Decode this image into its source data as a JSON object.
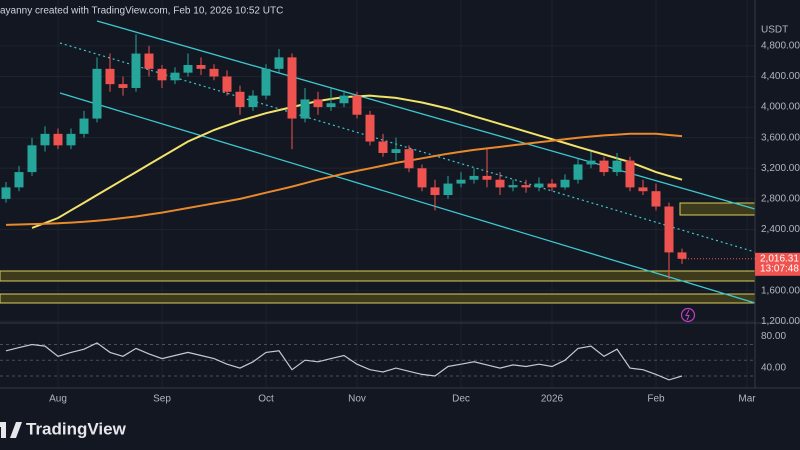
{
  "header": "ayanny created with TradingView.com, Feb 10, 2026 10:52 UTC",
  "brand": "TradingView",
  "chart_data": {
    "type": "candlestick",
    "currency": "USDT",
    "last_price_label": "2,016.31",
    "countdown": "13:07:48",
    "up_color": "#26a69a",
    "down_color": "#ef5350",
    "categories": [
      null,
      null,
      null,
      null,
      "Aug",
      null,
      null,
      null,
      null,
      null,
      null,
      null,
      "Sep",
      null,
      null,
      null,
      null,
      null,
      null,
      null,
      "Oct",
      null,
      null,
      null,
      null,
      null,
      null,
      "Nov",
      null,
      null,
      null,
      null,
      null,
      null,
      null,
      "Dec",
      null,
      null,
      null,
      null,
      null,
      null,
      "2026",
      null,
      null,
      null,
      null,
      null,
      null,
      null,
      "Feb",
      null,
      null,
      null,
      null,
      null,
      null,
      "Mar"
    ],
    "open": [
      2800,
      2950,
      3150,
      3500,
      3650,
      3500,
      3650,
      3850,
      4500,
      4300,
      4250,
      4700,
      4500,
      4350,
      4450,
      4550,
      4500,
      4400,
      4200,
      4000,
      4150,
      4500,
      4650,
      3850,
      4100,
      4000,
      4050,
      4150,
      3900,
      3550,
      3400,
      3450,
      3200,
      2950,
      2850,
      3000,
      3050,
      3100,
      3050,
      2950,
      2980,
      2950,
      3000,
      2950,
      3050,
      3250,
      3300,
      3150,
      3300,
      2950,
      2900,
      2700,
      2100,
      null,
      null,
      null,
      null,
      null
    ],
    "high": [
      3020,
      3230,
      3600,
      3750,
      3720,
      3720,
      3950,
      4650,
      4700,
      4400,
      4950,
      4800,
      4550,
      4520,
      4700,
      4650,
      4560,
      4480,
      4280,
      4220,
      4560,
      4760,
      4700,
      4250,
      4200,
      4250,
      4220,
      4200,
      3950,
      3650,
      3600,
      3500,
      3250,
      3050,
      3100,
      3150,
      3200,
      3450,
      3150,
      3050,
      3050,
      3080,
      3060,
      3120,
      3320,
      3420,
      3350,
      3400,
      3350,
      3050,
      3000,
      2750,
      2150,
      null,
      null,
      null,
      null,
      null
    ],
    "low": [
      2750,
      2900,
      3100,
      3420,
      3450,
      3450,
      3600,
      3800,
      4200,
      4150,
      4200,
      4400,
      4250,
      4300,
      4400,
      4420,
      4350,
      4150,
      3900,
      3950,
      4100,
      4450,
      3450,
      3800,
      3900,
      3950,
      4000,
      3850,
      3500,
      3350,
      3300,
      3150,
      2900,
      2650,
      2800,
      2950,
      3000,
      2950,
      2850,
      2900,
      2880,
      2900,
      2900,
      2920,
      3000,
      3200,
      3100,
      3100,
      2900,
      2850,
      2650,
      1750,
      1950,
      null,
      null,
      null,
      null,
      null
    ],
    "close": [
      2950,
      3150,
      3500,
      3650,
      3500,
      3650,
      3850,
      4500,
      4300,
      4250,
      4700,
      4500,
      4350,
      4450,
      4550,
      4500,
      4400,
      4200,
      4000,
      4150,
      4500,
      4650,
      3850,
      4100,
      4000,
      4050,
      4150,
      3900,
      3550,
      3400,
      3450,
      3200,
      2950,
      2850,
      3000,
      3050,
      3100,
      3050,
      2950,
      2980,
      2950,
      3000,
      2950,
      3050,
      3250,
      3300,
      3150,
      3300,
      2950,
      2900,
      2700,
      2100,
      2016.31,
      null,
      null,
      null,
      null,
      null
    ],
    "ma_lines": [
      {
        "color": "#f2e36b",
        "values": [
          null,
          null,
          2420,
          2485,
          2550,
          2650,
          2750,
          2850,
          2950,
          3050,
          3150,
          3250,
          3350,
          3450,
          3550,
          3625,
          3700,
          3760,
          3820,
          3870,
          3920,
          3960,
          4000,
          4040,
          4080,
          4105,
          4130,
          4140,
          4150,
          4135,
          4120,
          4090,
          4060,
          4020,
          3980,
          3930,
          3880,
          3830,
          3780,
          3730,
          3680,
          3630,
          3580,
          3530,
          3480,
          3430,
          3380,
          3330,
          3280,
          3215,
          3150,
          3100,
          3050,
          null,
          null,
          null,
          null,
          null
        ]
      },
      {
        "color": "#e8892c",
        "values": [
          2460,
          2465,
          2470,
          2475,
          2480,
          2490,
          2500,
          2515,
          2530,
          2550,
          2570,
          2595,
          2620,
          2650,
          2680,
          2710,
          2740,
          2770,
          2800,
          2840,
          2880,
          2920,
          2960,
          3005,
          3050,
          3090,
          3130,
          3165,
          3200,
          3235,
          3270,
          3300,
          3330,
          3360,
          3390,
          3415,
          3440,
          3460,
          3480,
          3500,
          3520,
          3540,
          3560,
          3580,
          3600,
          3615,
          3630,
          3640,
          3650,
          3650,
          3650,
          3635,
          3620,
          null,
          null,
          null,
          null,
          null
        ]
      }
    ],
    "ylim": [
      1190,
      5400
    ],
    "yticks": [
      {
        "value": 4800,
        "label": "4,800.00"
      },
      {
        "value": 4400,
        "label": "4,400.00"
      },
      {
        "value": 4000,
        "label": "4,000.00"
      },
      {
        "value": 3600,
        "label": "3,600.00"
      },
      {
        "value": 3200,
        "label": "3,200.00"
      },
      {
        "value": 2800,
        "label": "2,800.00"
      },
      {
        "value": 2400,
        "label": "2,400.00"
      },
      {
        "value": 1600,
        "label": "1,600.00"
      },
      {
        "value": 1200,
        "label": "1,200.00"
      }
    ],
    "grid": true,
    "rsi": {
      "color": "#c5c8d3",
      "values": [
        62,
        66,
        70,
        68,
        55,
        60,
        64,
        72,
        60,
        55,
        65,
        58,
        52,
        56,
        60,
        56,
        52,
        45,
        40,
        48,
        60,
        62,
        38,
        50,
        48,
        52,
        56,
        45,
        38,
        35,
        40,
        36,
        32,
        30,
        42,
        45,
        48,
        44,
        40,
        44,
        42,
        45,
        42,
        50,
        65,
        68,
        55,
        64,
        40,
        38,
        32,
        25,
        30,
        null,
        null,
        null,
        null,
        null
      ],
      "ylim": [
        16,
        96
      ],
      "yticks": [
        {
          "value": 80,
          "label": "80.00"
        },
        {
          "value": 40,
          "label": "40.00"
        }
      ],
      "levels": [
        70,
        50,
        30
      ]
    }
  }
}
